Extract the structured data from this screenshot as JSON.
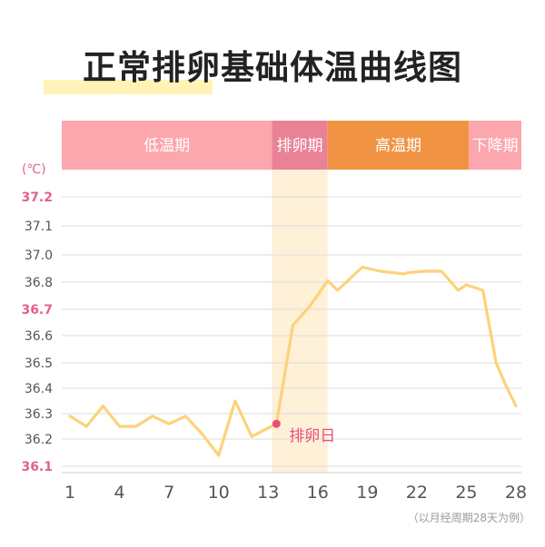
{
  "title": "正常排卵基础体温曲线图",
  "footnote": "（以月经周期28天为例）",
  "colors": {
    "line": "#fdd27a",
    "low_phase": "#fca6ad",
    "ovulation_phase": "#ea8296",
    "high_phase": "#f09443",
    "decline_phase": "#fca6ad",
    "ovulation_band": "#fff0d8",
    "highlight_tick": "#e0638a",
    "ovulation_dot": "#ea4f78",
    "grid": "#dddddd"
  },
  "chart_data": {
    "type": "line",
    "unit_label": "(℃)",
    "phases": [
      {
        "label": "低温期",
        "start": 0,
        "end": 12.8
      },
      {
        "label": "排卵期",
        "start": 12.8,
        "end": 16.2
      },
      {
        "label": "高温期",
        "start": 16.2,
        "end": 24.8
      },
      {
        "label": "下降期",
        "start": 24.8,
        "end": 28
      }
    ],
    "ovulation_band": [
      12.8,
      16.2
    ],
    "y_ticks": [
      "36.1",
      "36.2",
      "36.3",
      "36.4",
      "36.5",
      "36.6",
      "36.7",
      "36.8",
      "37.0",
      "37.1",
      "37.2"
    ],
    "highlighted_y_ticks": [
      "36.1",
      "36.7",
      "37.2"
    ],
    "x_ticks": [
      1,
      4,
      7,
      10,
      13,
      16,
      19,
      22,
      25,
      28
    ],
    "series": [
      {
        "values": [
          [
            1,
            36.29
          ],
          [
            2,
            36.25
          ],
          [
            3,
            36.33
          ],
          [
            4,
            36.25
          ],
          [
            5,
            36.25
          ],
          [
            6,
            36.29
          ],
          [
            7,
            36.26
          ],
          [
            8,
            36.29
          ],
          [
            9,
            36.22
          ],
          [
            10,
            36.14
          ],
          [
            11,
            36.35
          ],
          [
            12,
            36.21
          ],
          [
            13.5,
            36.26
          ],
          [
            14.5,
            36.64
          ],
          [
            15.5,
            36.71
          ],
          [
            16.6,
            36.81
          ],
          [
            17.2,
            36.77
          ],
          [
            18.7,
            36.91
          ],
          [
            19.8,
            36.88
          ],
          [
            21.2,
            36.86
          ],
          [
            21.5,
            36.87
          ],
          [
            22.5,
            36.88
          ],
          [
            23.5,
            36.88
          ],
          [
            24.5,
            36.77
          ],
          [
            25,
            36.79
          ],
          [
            26,
            36.77
          ],
          [
            26.8,
            36.5
          ],
          [
            27.4,
            36.41
          ],
          [
            28,
            36.33
          ]
        ]
      }
    ],
    "annotation": {
      "label": "排卵日",
      "x": 13.5,
      "y": 36.26
    }
  }
}
